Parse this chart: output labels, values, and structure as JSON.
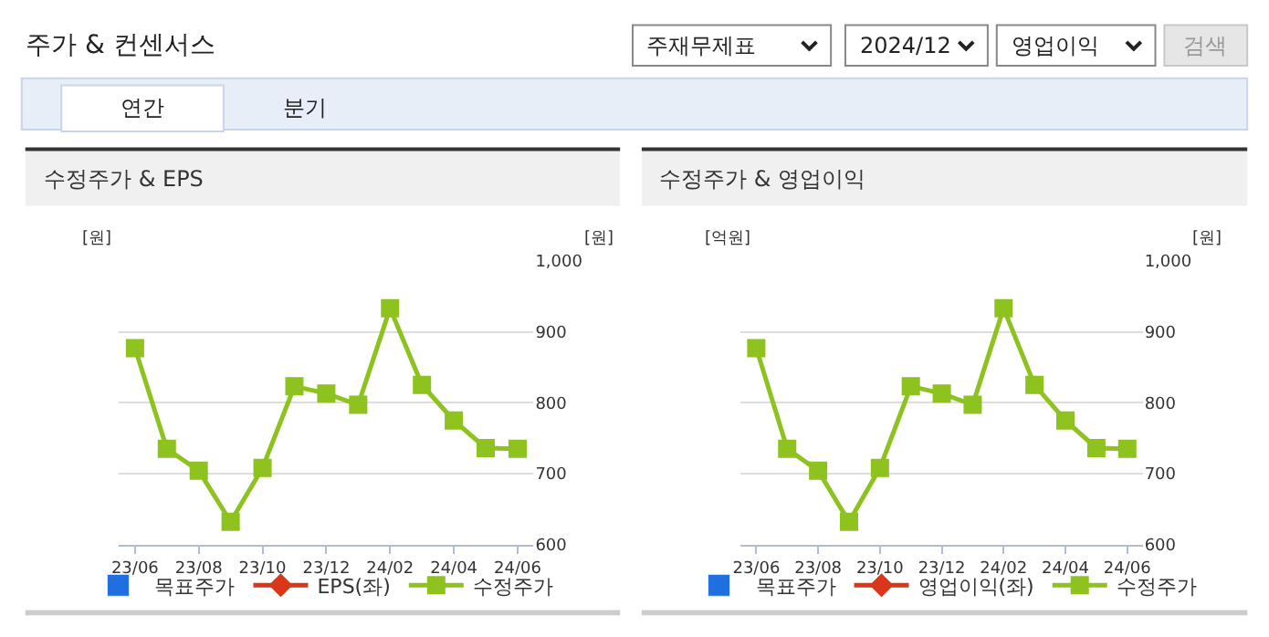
{
  "chart_data": [
    {
      "type": "other",
      "title": "주가 & 컨센서스",
      "annotations": [
        "주재무제표",
        "2024/12",
        "영업이익",
        "검색",
        "연간",
        "분기"
      ]
    },
    {
      "type": "line",
      "title": "수정주가 & EPS",
      "ylabel": "[원]",
      "y2label": "[원]",
      "categories": [
        "23/06",
        null,
        "23/08",
        null,
        "23/10",
        null,
        "23/12",
        null,
        "24/02",
        null,
        "24/04",
        null,
        "24/06"
      ],
      "y2lim": [
        600,
        1000
      ],
      "y2ticks": [
        600,
        700,
        800,
        900,
        {
          "value": 1000,
          "label": "1,000"
        }
      ],
      "grid": "y",
      "legend": "bottom",
      "series": [
        {
          "name": "목표주가",
          "type": "bar",
          "color": "#1f6fe0",
          "values": [
            null,
            null,
            null,
            null,
            null,
            null,
            null,
            null,
            null,
            null,
            null,
            null,
            null
          ]
        },
        {
          "name": "EPS(좌)",
          "color": "#d9361a",
          "marker": "diamond",
          "values": [
            null,
            null,
            null,
            null,
            null,
            null,
            null,
            null,
            null,
            null,
            null,
            null,
            null
          ]
        },
        {
          "name": "수정주가",
          "color": "#8dc21f",
          "marker": "square",
          "axis": "y2",
          "values": [
            877,
            735,
            704,
            632,
            708,
            823,
            813,
            797,
            933,
            825,
            775,
            736,
            735
          ]
        }
      ]
    },
    {
      "type": "line",
      "title": "수정주가 & 영업이익",
      "ylabel": "[억원]",
      "y2label": "[원]",
      "categories": [
        "23/06",
        null,
        "23/08",
        null,
        "23/10",
        null,
        "23/12",
        null,
        "24/02",
        null,
        "24/04",
        null,
        "24/06"
      ],
      "y2lim": [
        600,
        1000
      ],
      "y2ticks": [
        600,
        700,
        800,
        900,
        {
          "value": 1000,
          "label": "1,000"
        }
      ],
      "grid": "y",
      "legend": "bottom",
      "series": [
        {
          "name": "목표주가",
          "type": "bar",
          "color": "#1f6fe0",
          "values": [
            null,
            null,
            null,
            null,
            null,
            null,
            null,
            null,
            null,
            null,
            null,
            null,
            null
          ]
        },
        {
          "name": "영업이익(좌)",
          "color": "#d9361a",
          "marker": "diamond",
          "values": [
            null,
            null,
            null,
            null,
            null,
            null,
            null,
            null,
            null,
            null,
            null,
            null,
            null
          ]
        },
        {
          "name": "수정주가",
          "color": "#8dc21f",
          "marker": "square",
          "axis": "y2",
          "values": [
            877,
            735,
            704,
            632,
            708,
            823,
            813,
            797,
            933,
            825,
            775,
            736,
            735
          ]
        }
      ]
    }
  ]
}
